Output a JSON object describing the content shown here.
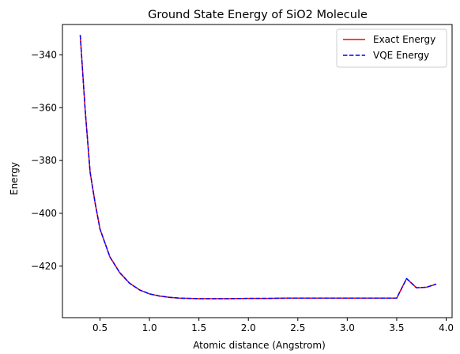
{
  "chart_data": {
    "type": "line",
    "title": "Ground State Energy of SiO2 Molecule",
    "xlabel": "Atomic distance (Angstrom)",
    "ylabel": "Energy",
    "xlim": [
      0.12,
      4.06
    ],
    "ylim": [
      -439.5,
      -328.5
    ],
    "x_ticks": [
      0.5,
      1.0,
      1.5,
      2.0,
      2.5,
      3.0,
      3.5,
      4.0
    ],
    "x_tick_labels": [
      "0.5",
      "1.0",
      "1.5",
      "2.0",
      "2.5",
      "3.0",
      "3.5",
      "4.0"
    ],
    "y_ticks": [
      -340,
      -360,
      -380,
      -400,
      -420
    ],
    "y_tick_labels": [
      "−340",
      "−360",
      "−380",
      "−400",
      "−420"
    ],
    "grid": false,
    "legend_position": "top-right",
    "x": [
      0.3,
      0.35,
      0.4,
      0.45,
      0.5,
      0.6,
      0.7,
      0.8,
      0.9,
      1.0,
      1.1,
      1.2,
      1.3,
      1.4,
      1.5,
      1.6,
      1.8,
      2.0,
      2.2,
      2.4,
      2.6,
      2.8,
      3.0,
      3.2,
      3.4,
      3.5,
      3.6,
      3.7,
      3.8,
      3.9
    ],
    "series": [
      {
        "name": "Exact Energy",
        "color": "#ff0000",
        "style": "solid",
        "values": [
          -332.5,
          -361.0,
          -384.5,
          -396.0,
          -406.0,
          -416.5,
          -422.5,
          -426.5,
          -429.0,
          -430.5,
          -431.3,
          -431.8,
          -432.1,
          -432.2,
          -432.3,
          -432.3,
          -432.3,
          -432.2,
          -432.2,
          -432.1,
          -432.1,
          -432.1,
          -432.1,
          -432.1,
          -432.1,
          -432.1,
          -424.7,
          -428.2,
          -428.0,
          -426.8
        ]
      },
      {
        "name": "VQE Energy",
        "color": "#0000ff",
        "style": "dashed",
        "values": [
          -332.5,
          -361.0,
          -384.5,
          -396.0,
          -406.0,
          -416.5,
          -422.5,
          -426.5,
          -429.0,
          -430.5,
          -431.3,
          -431.8,
          -432.1,
          -432.2,
          -432.3,
          -432.3,
          -432.3,
          -432.2,
          -432.2,
          -432.1,
          -432.1,
          -432.1,
          -432.1,
          -432.1,
          -432.1,
          -432.1,
          -424.7,
          -428.2,
          -428.0,
          -426.8
        ]
      }
    ]
  }
}
